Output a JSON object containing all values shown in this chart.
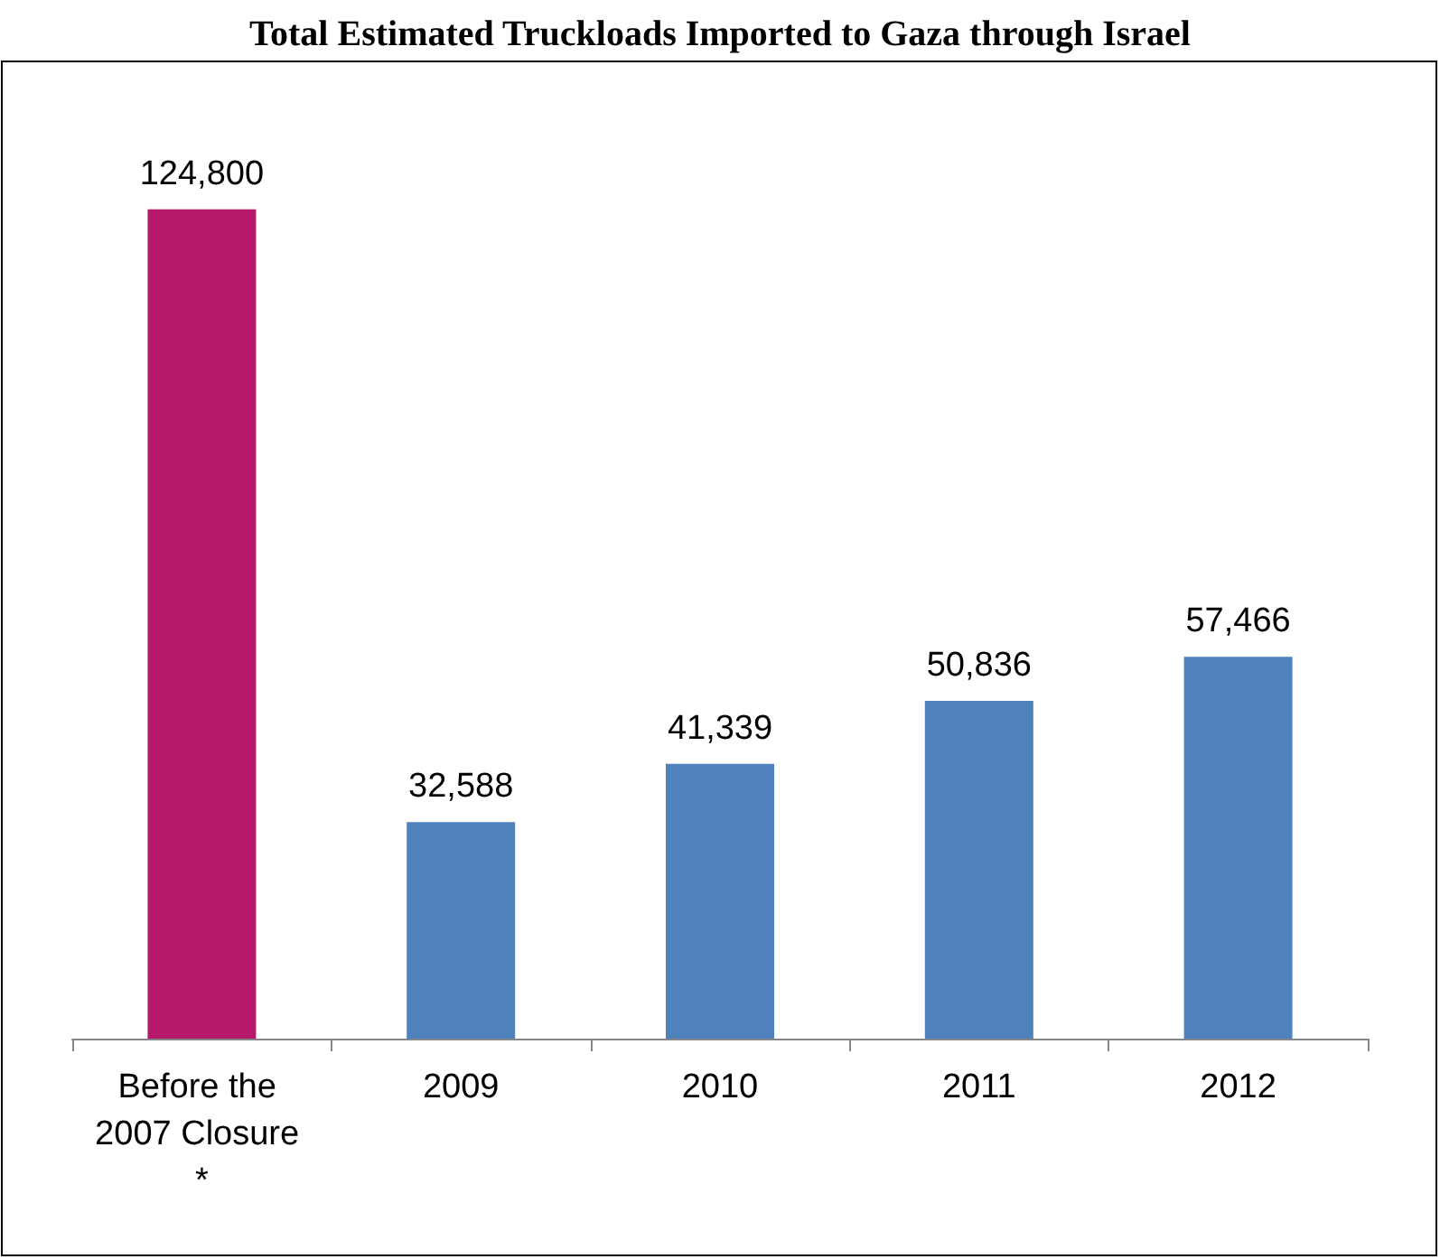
{
  "chart_data": {
    "type": "bar",
    "title": "Total Estimated Truckloads Imported to Gaza through Israel",
    "categories": [
      "Before the 2007 Closure *",
      "2009",
      "2010",
      "2011",
      "2012"
    ],
    "values": [
      124800,
      32588,
      41339,
      50836,
      57466
    ],
    "value_labels": [
      "124,800",
      "32,588",
      "41,339",
      "50,836",
      "57,466"
    ],
    "colors": [
      "#b5196a",
      "#4f81bd",
      "#4f81bd",
      "#4f81bd",
      "#4f81bd"
    ]
  }
}
